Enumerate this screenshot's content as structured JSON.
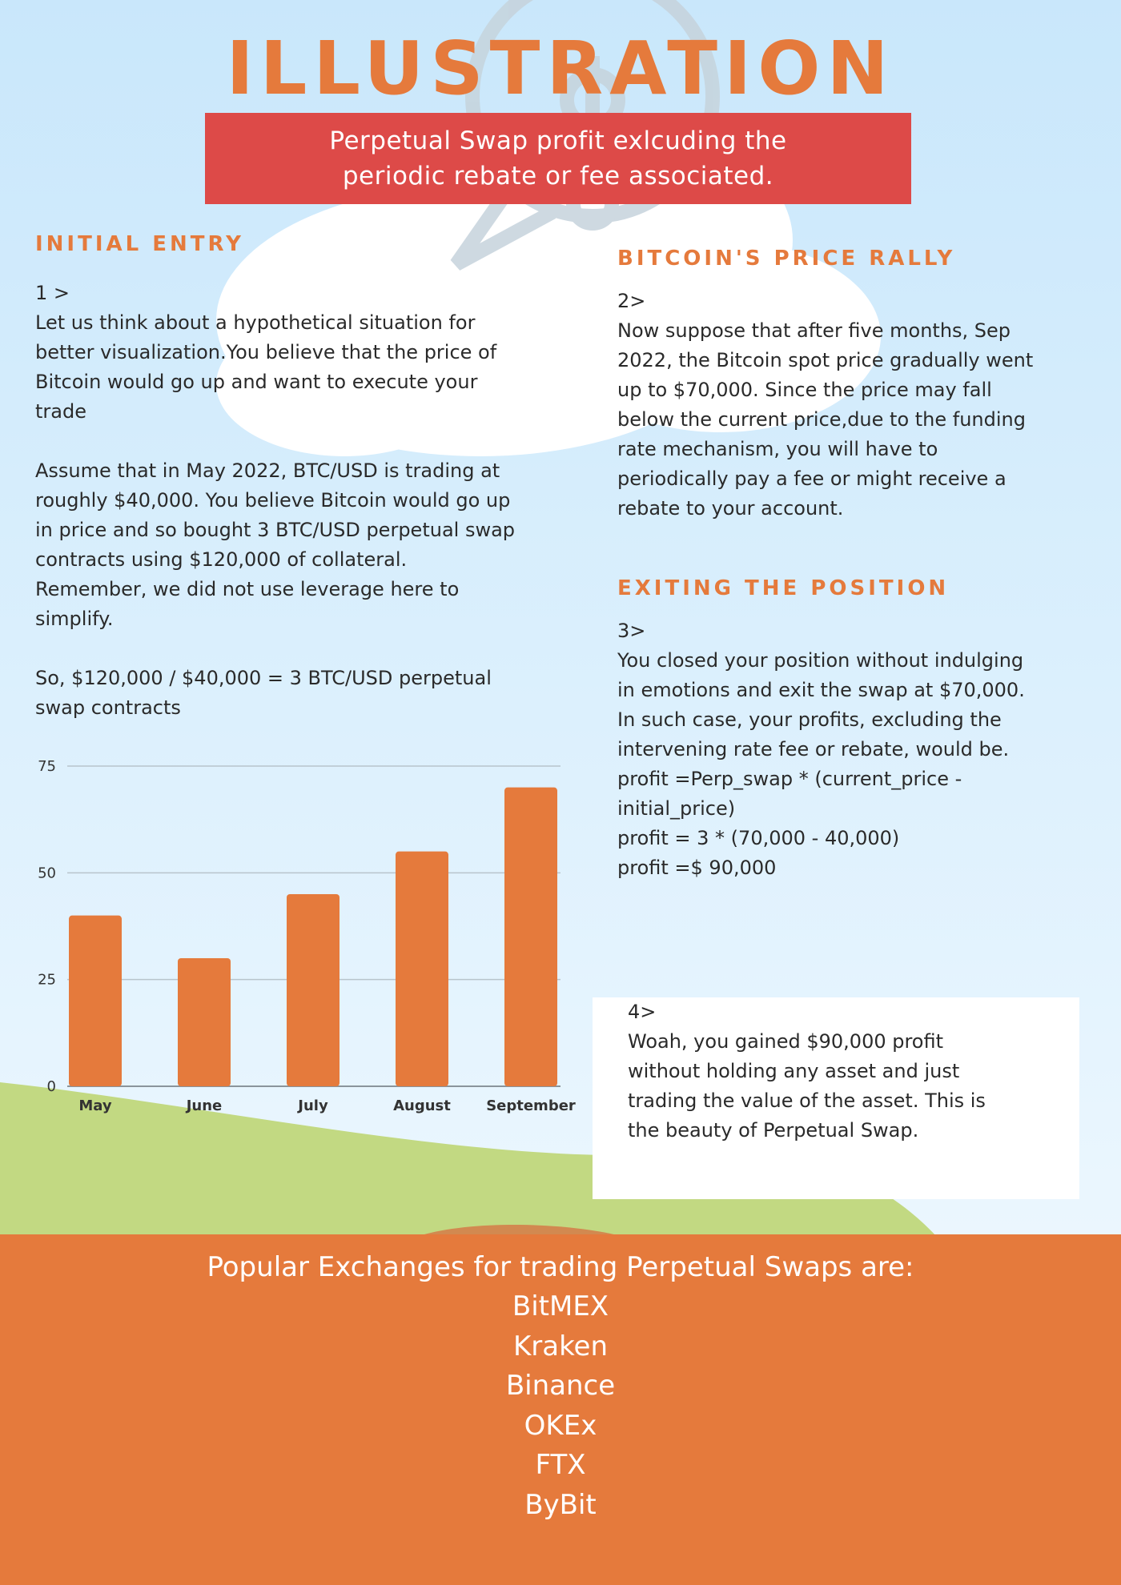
{
  "title": "ILLUSTRATION",
  "subtitle": "Perpetual Swap profit exlcuding the\nperiodic rebate or fee associated.",
  "sections": {
    "initial_entry": {
      "heading": "INITIAL ENTRY",
      "body": "1 >\nLet us think about a hypothetical situation for\nbetter visualization.You believe that the price of\nBitcoin would go up and want to execute your\ntrade\n\nAssume that in May 2022, BTC/USD is trading at\nroughly $40,000. You believe Bitcoin would go up\nin price and so bought 3 BTC/USD perpetual swap\ncontracts using $120,000 of collateral.\nRemember, we did not use leverage here to\nsimplify.\n\nSo, $120,000 / $40,000 = 3 BTC/USD perpetual\nswap contracts"
    },
    "price_rally": {
      "heading": "BITCOIN'S PRICE RALLY",
      "body": "2>\nNow suppose that after five months, Sep\n2022, the Bitcoin spot price gradually went\nup to $70,000. Since the price may fall\nbelow the current price,due to the funding\nrate mechanism, you will have to\nperiodically pay a fee or might receive a\nrebate to your account."
    },
    "exiting": {
      "heading": "EXITING THE POSITION",
      "body": "3>\nYou closed your position without indulging\nin emotions and exit the swap at $70,000.\nIn such case, your profits, excluding the\nintervening rate fee or rebate, would be.\nprofit =Perp_swap * (current_price -\ninitial_price)\n profit = 3 * (70,000 - 40,000)\n profit =$ 90,000"
    },
    "conclusion": {
      "body": "4>\nWoah, you gained $90,000 profit\nwithout holding any asset and just\ntrading the value of the asset. This is\nthe beauty of Perpetual Swap."
    }
  },
  "chart_data": {
    "type": "bar",
    "categories": [
      "May",
      "June",
      "July",
      "August",
      "September"
    ],
    "values": [
      40,
      30,
      45,
      55,
      70
    ],
    "yticks": [
      0,
      25,
      50,
      75
    ],
    "ylim": [
      0,
      75
    ],
    "grid": true,
    "bar_color": "#e57a3c",
    "grid_color": "#b8c4cc"
  },
  "footer": {
    "intro": "Popular Exchanges for  trading Perpetual Swaps are:",
    "exchanges": [
      "BitMEX",
      "Kraken",
      "Binance",
      "OKEx",
      "FTX",
      "ByBit"
    ]
  },
  "colors": {
    "accent": "#e57a3c",
    "subtitle_bg": "#dd4a48",
    "grass": "#c2d982"
  }
}
